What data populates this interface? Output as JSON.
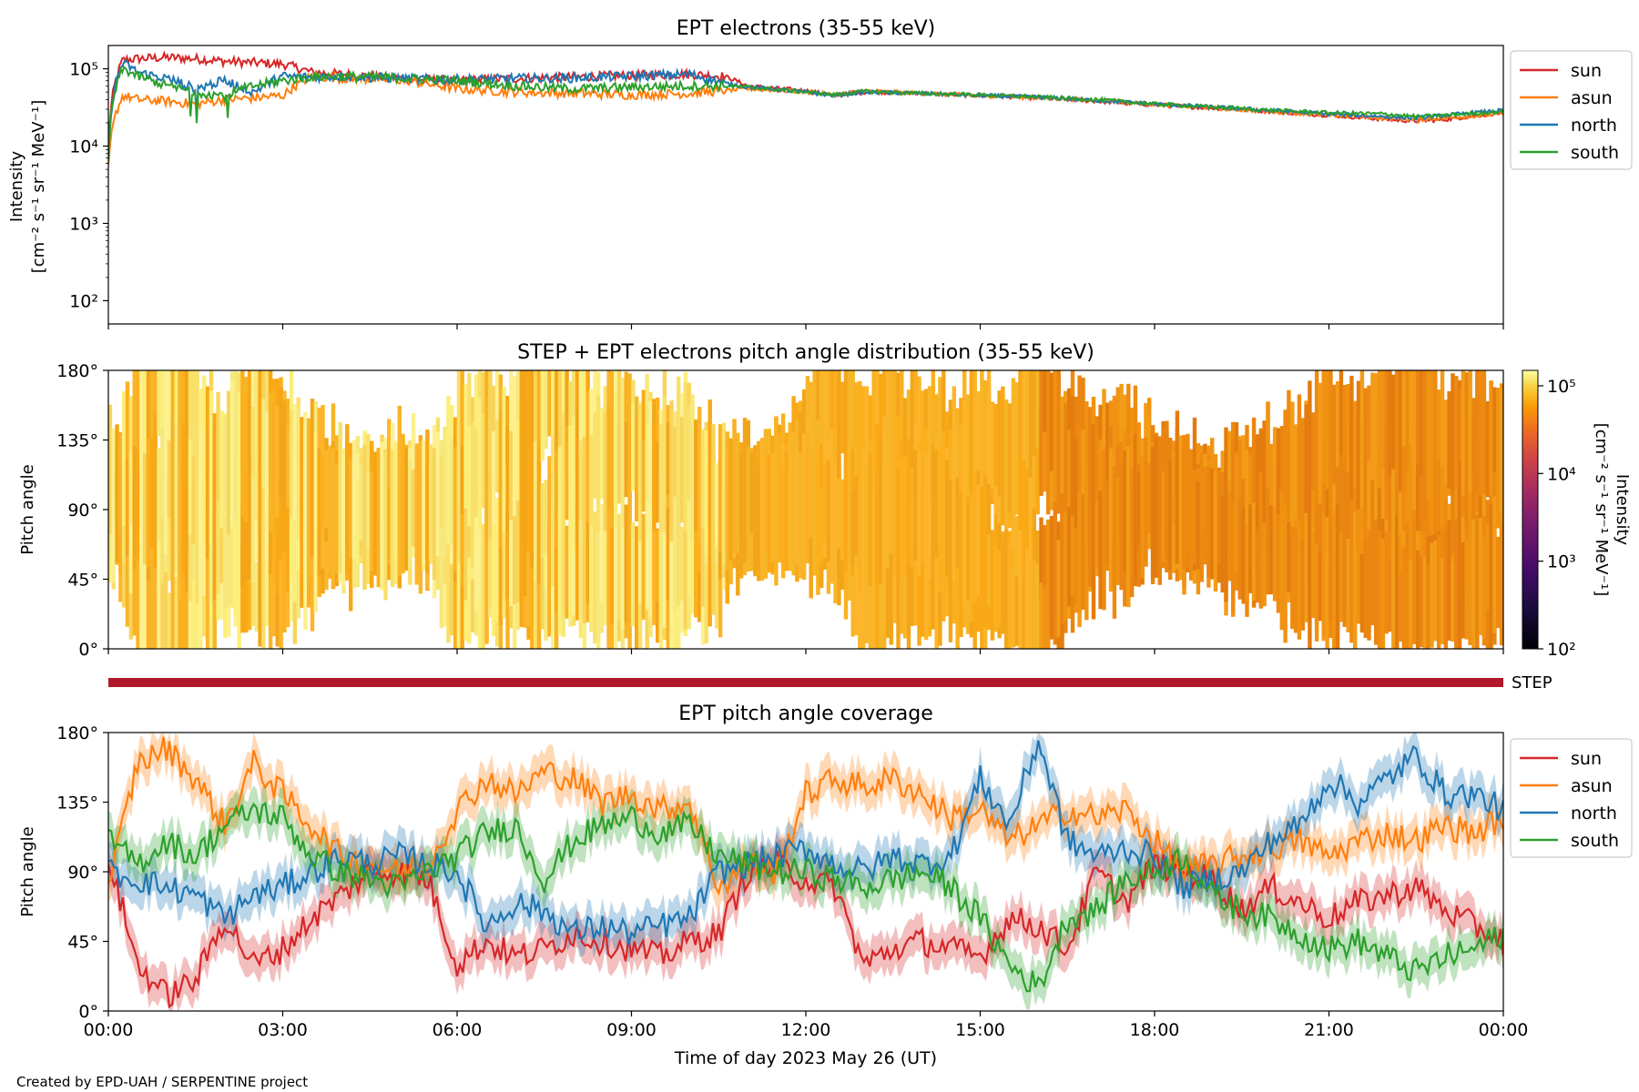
{
  "footer": {
    "credit": "Created by EPD-UAH / SERPENTINE project"
  },
  "colors": {
    "sun": "#d62728",
    "asun": "#ff7f0e",
    "north": "#1f77b4",
    "south": "#2ca02c",
    "step_bar": "#b2182b"
  },
  "chart_data": [
    {
      "type": "line",
      "title": "EPT electrons (35-55 keV)",
      "ylabel_line1": "Intensity",
      "ylabel_line2": "[cm⁻² s⁻¹ sr⁻¹ MeV⁻¹]",
      "yscale": "log",
      "ylim": [
        50,
        200000
      ],
      "yticks": [
        "10²",
        "10³",
        "10⁴",
        "10⁵"
      ],
      "xlim": [
        "00:00",
        "24:00"
      ],
      "grid": false,
      "legend": {
        "placement": "outside-right",
        "entries": [
          "sun",
          "asun",
          "north",
          "south"
        ]
      },
      "x_hours": [
        0,
        0.25,
        0.5,
        1,
        1.5,
        2,
        2.5,
        3,
        3.5,
        4,
        5,
        6,
        7,
        8,
        9,
        10,
        10.6,
        11,
        12,
        12.5,
        13,
        14,
        15,
        16,
        17,
        18,
        19,
        20,
        21,
        22,
        22.5,
        23,
        24
      ],
      "series": [
        {
          "name": "sun",
          "values": [
            8000,
            130000,
            135000,
            140000,
            135000,
            125000,
            120000,
            115000,
            90000,
            85000,
            75000,
            70000,
            75000,
            78000,
            82000,
            85000,
            80000,
            60000,
            52000,
            45000,
            50000,
            48000,
            45000,
            42000,
            38000,
            34000,
            31000,
            28000,
            25000,
            22000,
            21000,
            22000,
            27000
          ]
        },
        {
          "name": "asun",
          "values": [
            5000,
            45000,
            40000,
            38000,
            35000,
            40000,
            42000,
            45000,
            80000,
            75000,
            72000,
            55000,
            50000,
            48000,
            46000,
            48000,
            52000,
            55000,
            50000,
            46000,
            52000,
            48000,
            45000,
            42000,
            39000,
            35000,
            31000,
            28000,
            25000,
            23000,
            22000,
            23000,
            26000
          ]
        },
        {
          "name": "north",
          "values": [
            6000,
            120000,
            90000,
            75000,
            55000,
            70000,
            50000,
            80000,
            78000,
            80000,
            75000,
            72000,
            75000,
            76000,
            80000,
            85000,
            65000,
            58000,
            50000,
            45000,
            50000,
            48000,
            45000,
            43000,
            39000,
            35000,
            32000,
            29000,
            26000,
            24000,
            23000,
            25000,
            29000
          ]
        },
        {
          "name": "south",
          "values": [
            6000,
            100000,
            80000,
            60000,
            50000,
            45000,
            60000,
            70000,
            78000,
            80000,
            76000,
            70000,
            60000,
            55000,
            58000,
            60000,
            60000,
            58000,
            50000,
            46000,
            51000,
            48000,
            46000,
            43000,
            40000,
            35000,
            32000,
            29000,
            27000,
            26000,
            24000,
            25000,
            28000
          ]
        }
      ]
    },
    {
      "type": "heatmap",
      "title": "STEP + EPT electrons pitch angle distribution (35-55 keV)",
      "ylabel": "Pitch angle",
      "ylim": [
        0,
        180
      ],
      "yticks": [
        "0°",
        "45°",
        "90°",
        "135°",
        "180°"
      ],
      "xlim": [
        "00:00",
        "24:00"
      ],
      "colorbar": {
        "label_line1": "Intensity",
        "label_line2": "[cm⁻² s⁻¹ sr⁻¹ MeV⁻¹]",
        "scale": "log",
        "range": [
          100,
          150000
        ],
        "ticks": [
          "10²",
          "10³",
          "10⁴",
          "10⁵"
        ],
        "colormap": "inferno"
      },
      "note": "",
      "step_label": "STEP"
    },
    {
      "type": "line",
      "title": "EPT pitch angle coverage",
      "ylabel": "Pitch angle",
      "ylim": [
        0,
        180
      ],
      "yticks": [
        "0°",
        "45°",
        "90°",
        "135°",
        "180°"
      ],
      "xlabel": "Time of day 2023 May 26 (UT)",
      "xticks": [
        "00:00",
        "03:00",
        "06:00",
        "09:00",
        "12:00",
        "15:00",
        "18:00",
        "21:00",
        "00:00"
      ],
      "xlim": [
        "00:00",
        "24:00"
      ],
      "shaded_band": true,
      "legend": {
        "placement": "outside-right",
        "entries": [
          "sun",
          "asun",
          "north",
          "south"
        ]
      },
      "x_hours": [
        0,
        0.5,
        1,
        1.5,
        2,
        2.5,
        3,
        3.5,
        4,
        4.5,
        5,
        5.5,
        6,
        6.5,
        7,
        7.5,
        8,
        8.5,
        9,
        9.5,
        10,
        10.5,
        11,
        11.5,
        12,
        12.5,
        13,
        13.5,
        14,
        14.5,
        15,
        15.5,
        16,
        16.5,
        17,
        17.5,
        18,
        18.5,
        19,
        19.5,
        20,
        20.5,
        21,
        21.5,
        22,
        22.5,
        23,
        23.5,
        24
      ],
      "series": [
        {
          "name": "sun",
          "values": [
            100,
            30,
            10,
            20,
            60,
            30,
            40,
            60,
            75,
            90,
            90,
            85,
            30,
            45,
            35,
            40,
            50,
            45,
            40,
            35,
            45,
            50,
            90,
            95,
            85,
            80,
            30,
            40,
            45,
            40,
            35,
            60,
            55,
            40,
            90,
            70,
            95,
            90,
            85,
            65,
            80,
            70,
            60,
            70,
            75,
            80,
            65,
            55,
            45
          ]
        },
        {
          "name": "asun",
          "values": [
            80,
            160,
            170,
            150,
            120,
            160,
            140,
            120,
            100,
            95,
            90,
            95,
            130,
            150,
            140,
            155,
            150,
            135,
            140,
            130,
            135,
            80,
            95,
            90,
            140,
            150,
            145,
            150,
            140,
            125,
            130,
            110,
            120,
            130,
            125,
            130,
            110,
            90,
            95,
            100,
            105,
            110,
            100,
            110,
            115,
            110,
            120,
            115,
            125
          ]
        },
        {
          "name": "north",
          "values": [
            90,
            85,
            80,
            75,
            60,
            75,
            80,
            90,
            100,
            95,
            100,
            95,
            90,
            55,
            70,
            65,
            50,
            55,
            50,
            55,
            60,
            90,
            95,
            100,
            105,
            95,
            90,
            100,
            95,
            100,
            150,
            120,
            175,
            110,
            100,
            105,
            100,
            80,
            85,
            90,
            110,
            120,
            150,
            135,
            150,
            165,
            140,
            140,
            130
          ]
        },
        {
          "name": "south",
          "values": [
            110,
            95,
            110,
            100,
            120,
            130,
            125,
            100,
            90,
            85,
            80,
            90,
            100,
            115,
            120,
            85,
            110,
            120,
            125,
            115,
            120,
            100,
            95,
            90,
            90,
            85,
            80,
            85,
            90,
            80,
            60,
            30,
            15,
            60,
            65,
            85,
            90,
            100,
            75,
            65,
            60,
            50,
            40,
            45,
            35,
            25,
            35,
            40,
            50
          ]
        }
      ]
    }
  ]
}
